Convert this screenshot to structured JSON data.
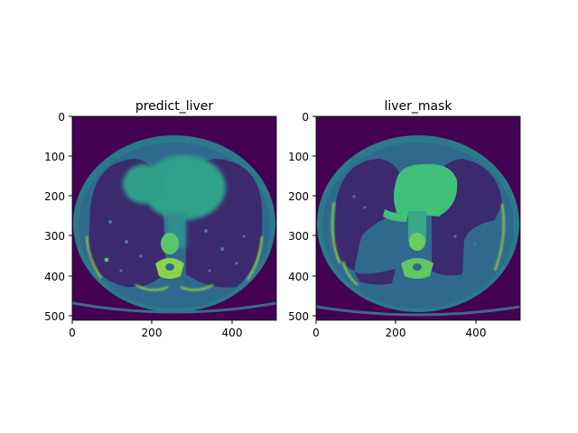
{
  "panels": [
    {
      "title": "predict_liver",
      "xticks": [
        "0",
        "200",
        "400"
      ],
      "yticks": [
        "0",
        "100",
        "200",
        "300",
        "400",
        "500"
      ],
      "colors": {
        "background": "#440154",
        "body": "#2f6d8e",
        "soft": "#3fb57b",
        "bone": "#b5de2b"
      }
    },
    {
      "title": "liver_mask",
      "xticks": [
        "0",
        "200",
        "400"
      ],
      "yticks": [
        "0",
        "100",
        "200",
        "300",
        "400",
        "500"
      ],
      "colors": {
        "background": "#440154",
        "body": "#2f6d8e",
        "soft": "#3fb57b",
        "bone": "#b5de2b"
      }
    }
  ]
}
